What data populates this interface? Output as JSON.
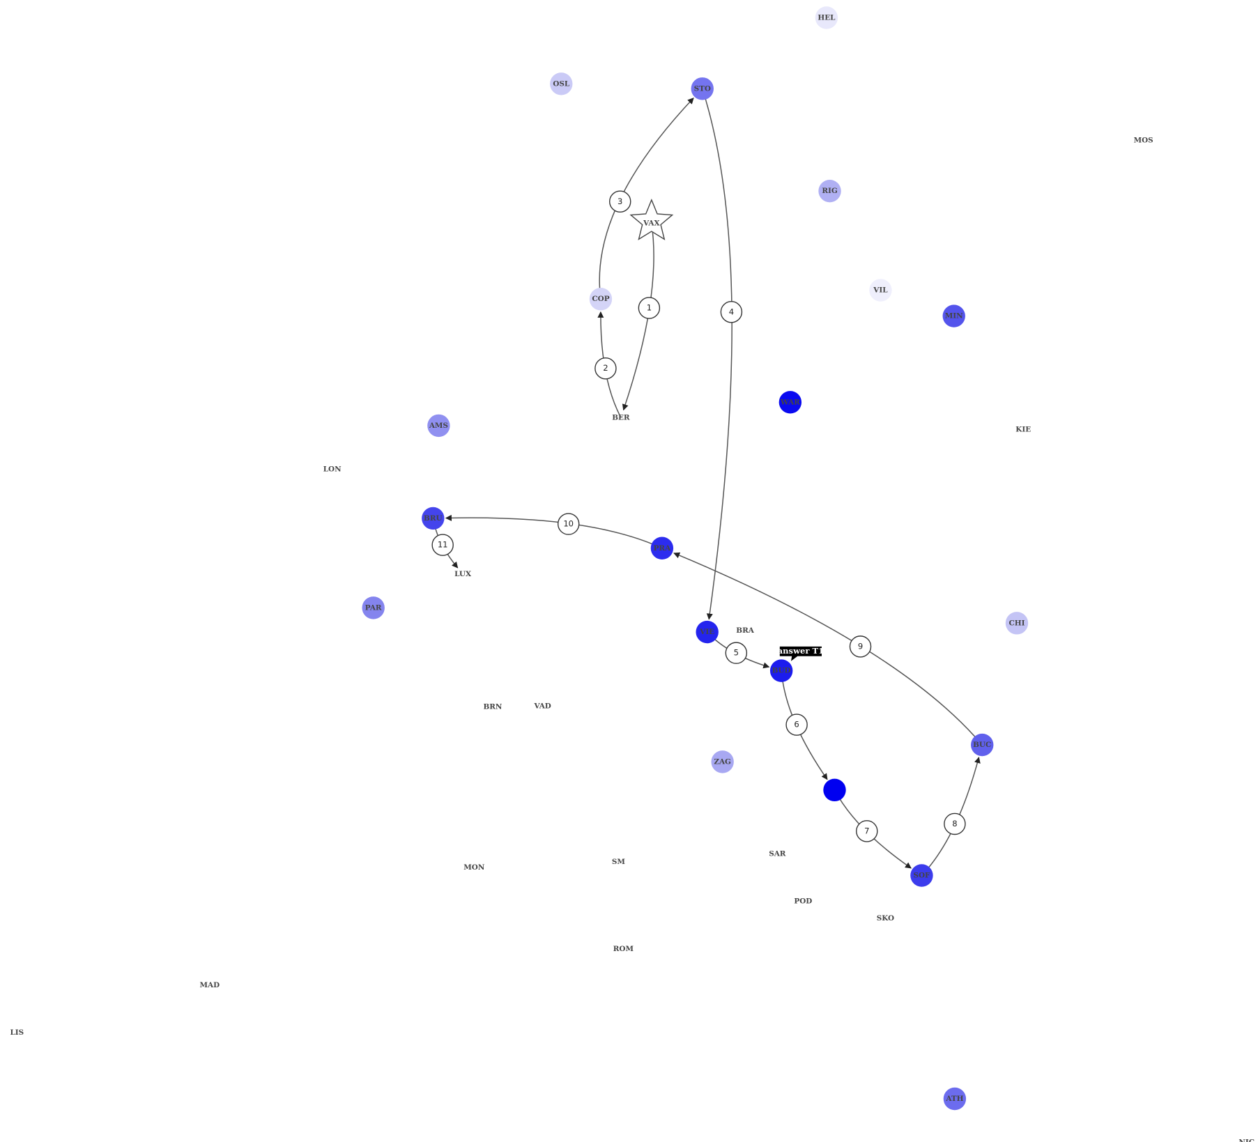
{
  "nodes": [
    {
      "label": "HEL",
      "color": "#e8e8fb"
    },
    {
      "label": "OSL",
      "color": "#cacaf6"
    },
    {
      "label": "STO",
      "color": "#7474ef"
    },
    {
      "label": "MOS",
      "color": null
    },
    {
      "label": "RIG",
      "color": "#b0b0f3"
    },
    {
      "label": "VAX",
      "color": null
    },
    {
      "label": "VIL",
      "color": "#efeffc"
    },
    {
      "label": "MIN",
      "color": "#5454ec"
    },
    {
      "label": "COP",
      "color": "#d4d4f7"
    },
    {
      "label": "WAR",
      "color": "#0a0af0"
    },
    {
      "label": "BER",
      "color": null
    },
    {
      "label": "AMS",
      "color": "#9090f0"
    },
    {
      "label": "KIE",
      "color": null
    },
    {
      "label": "LON",
      "color": null
    },
    {
      "label": "BRU",
      "color": "#4444ec"
    },
    {
      "label": "PRA",
      "color": "#2c2cee"
    },
    {
      "label": "LUX",
      "color": null
    },
    {
      "label": "PAR",
      "color": "#8484ee"
    },
    {
      "label": "CHI",
      "color": "#c4c4f5"
    },
    {
      "label": "VIE",
      "color": "#2424ee"
    },
    {
      "label": "BRA",
      "color": null
    },
    {
      "label": "BUD",
      "color": "#1c1cee"
    },
    {
      "label": "BRN",
      "color": null
    },
    {
      "label": "VAD",
      "color": null
    },
    {
      "label": "ZAG",
      "color": "#a8a8f2"
    },
    {
      "label": "BUC",
      "color": "#6060ec"
    },
    {
      "label": "SAR",
      "color": null
    },
    {
      "label": "MON",
      "color": null
    },
    {
      "label": "SM",
      "color": null
    },
    {
      "label": "SOF",
      "color": "#3c3cec"
    },
    {
      "label": "POD",
      "color": null
    },
    {
      "label": "SKO",
      "color": null
    },
    {
      "label": "ROM",
      "color": null
    },
    {
      "label": "MAD",
      "color": null
    },
    {
      "label": "LIS",
      "color": null
    },
    {
      "label": "ATH",
      "color": "#6c6cee"
    },
    {
      "label": "NIC",
      "color": null
    }
  ],
  "steps": [
    "1",
    "2",
    "3",
    "4",
    "5",
    "6",
    "7",
    "8",
    "9",
    "10",
    "11"
  ],
  "callout": "answer T1"
}
